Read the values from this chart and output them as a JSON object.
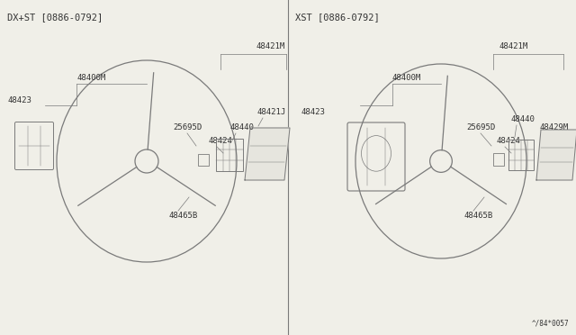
{
  "bg_color": "#f0efe8",
  "line_color": "#7a7a7a",
  "text_color": "#333333",
  "title_left": "DX+ST [0886-0792]",
  "title_right": "XST [0886-0792]",
  "watermark": "^/84*0057",
  "font_size": 6.5,
  "title_font_size": 7.5
}
